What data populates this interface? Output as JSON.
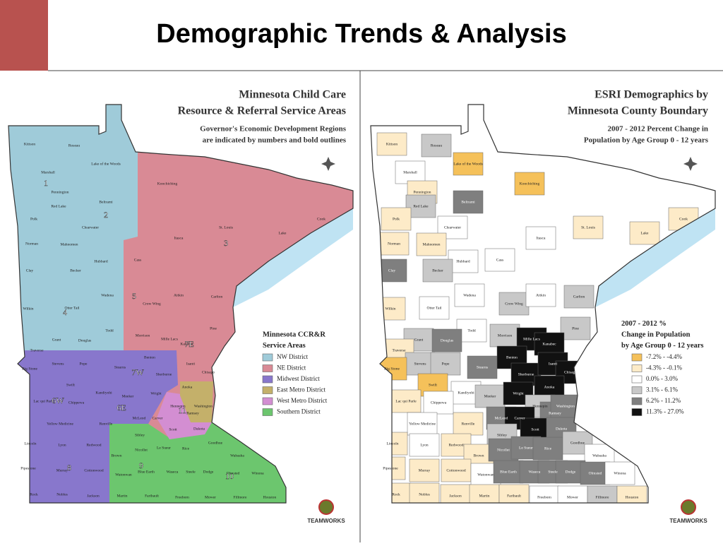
{
  "header": {
    "title": "Demographic Trends & Analysis"
  },
  "counties": [
    {
      "name": "Kittson",
      "class": 1
    },
    {
      "name": "Roseau",
      "class": 3
    },
    {
      "name": "Lake of the Woods",
      "class": 0
    },
    {
      "name": "Marshall",
      "class": 2
    },
    {
      "name": "Pennington",
      "class": 1
    },
    {
      "name": "Red Lake",
      "class": 3
    },
    {
      "name": "Polk",
      "class": 1
    },
    {
      "name": "Beltrami",
      "class": 4
    },
    {
      "name": "Clearwater",
      "class": 2
    },
    {
      "name": "Norman",
      "class": 1
    },
    {
      "name": "Mahnomen",
      "class": 1
    },
    {
      "name": "Hubbard",
      "class": 2
    },
    {
      "name": "Koochiching",
      "class": 0
    },
    {
      "name": "St. Louis",
      "class": 1
    },
    {
      "name": "Lake",
      "class": 1
    },
    {
      "name": "Cook",
      "class": 1
    },
    {
      "name": "Itasca",
      "class": 2
    },
    {
      "name": "Cass",
      "class": 2
    },
    {
      "name": "Clay",
      "class": 4
    },
    {
      "name": "Becker",
      "class": 3
    },
    {
      "name": "Wadena",
      "class": 2
    },
    {
      "name": "Crow Wing",
      "class": 3
    },
    {
      "name": "Aitkin",
      "class": 2
    },
    {
      "name": "Carlton",
      "class": 3
    },
    {
      "name": "Wilkin",
      "class": 1
    },
    {
      "name": "Otter Tail",
      "class": 2
    },
    {
      "name": "Todd",
      "class": 2
    },
    {
      "name": "Morrison",
      "class": 3
    },
    {
      "name": "Mille Lacs",
      "class": 5
    },
    {
      "name": "Pine",
      "class": 3
    },
    {
      "name": "Kanabec",
      "class": 5
    },
    {
      "name": "Grant",
      "class": 3
    },
    {
      "name": "Douglas",
      "class": 4
    },
    {
      "name": "Traverse",
      "class": 1
    },
    {
      "name": "Stevens",
      "class": 3
    },
    {
      "name": "Pope",
      "class": 3
    },
    {
      "name": "Stearns",
      "class": 4
    },
    {
      "name": "Benton",
      "class": 5
    },
    {
      "name": "Sherburne",
      "class": 5
    },
    {
      "name": "Isanti",
      "class": 5
    },
    {
      "name": "Chisago",
      "class": 5
    },
    {
      "name": "Big Stone",
      "class": 0
    },
    {
      "name": "Swift",
      "class": 0
    },
    {
      "name": "Kandiyohi",
      "class": 2
    },
    {
      "name": "Meeker",
      "class": 3
    },
    {
      "name": "Wright",
      "class": 5
    },
    {
      "name": "Anoka",
      "class": 5
    },
    {
      "name": "Lac qui Parle",
      "class": 1
    },
    {
      "name": "Chippewa",
      "class": 2
    },
    {
      "name": "Renville",
      "class": 1
    },
    {
      "name": "McLeod",
      "class": 4
    },
    {
      "name": "Hennepin",
      "class": 3
    },
    {
      "name": "Ramsey",
      "class": 4
    },
    {
      "name": "Washington",
      "class": 4
    },
    {
      "name": "Carver",
      "class": 5
    },
    {
      "name": "Scott",
      "class": 5
    },
    {
      "name": "Dakota",
      "class": 4
    },
    {
      "name": "Yellow Medicine",
      "class": 2
    },
    {
      "name": "Sibley",
      "class": 3
    },
    {
      "name": "Lincoln",
      "class": 1
    },
    {
      "name": "Lyon",
      "class": 2
    },
    {
      "name": "Redwood",
      "class": 1
    },
    {
      "name": "Brown",
      "class": 1
    },
    {
      "name": "Nicollet",
      "class": 4
    },
    {
      "name": "Le Sueur",
      "class": 4
    },
    {
      "name": "Rice",
      "class": 4
    },
    {
      "name": "Goodhue",
      "class": 3
    },
    {
      "name": "Wabasha",
      "class": 2
    },
    {
      "name": "Pipestone",
      "class": 1
    },
    {
      "name": "Murray",
      "class": 1
    },
    {
      "name": "Cottonwood",
      "class": 1
    },
    {
      "name": "Watonwan",
      "class": 2
    },
    {
      "name": "Blue Earth",
      "class": 4
    },
    {
      "name": "Waseca",
      "class": 4
    },
    {
      "name": "Steele",
      "class": 4
    },
    {
      "name": "Dodge",
      "class": 4
    },
    {
      "name": "Olmsted",
      "class": 4
    },
    {
      "name": "Winona",
      "class": 2
    },
    {
      "name": "Rock",
      "class": 1
    },
    {
      "name": "Nobles",
      "class": 1
    },
    {
      "name": "Jackson",
      "class": 1
    },
    {
      "name": "Martin",
      "class": 1
    },
    {
      "name": "Faribault",
      "class": 1
    },
    {
      "name": "Freeborn",
      "class": 2
    },
    {
      "name": "Mower",
      "class": 2
    },
    {
      "name": "Fillmore",
      "class": 3
    },
    {
      "name": "Houston",
      "class": 1
    }
  ],
  "maps": [
    {
      "title_lines": [
        "Minnesota Child Care",
        "Resource & Referral Service Areas"
      ],
      "subtitle_lines": [
        "Governor's Economic Development Regions",
        "are indicated by numbers and bold outlines"
      ],
      "legend": {
        "title_lines": [
          "Minnesota CCR&R",
          "Service Areas"
        ],
        "items": [
          {
            "label": "NW District",
            "color": "#9fcbd9"
          },
          {
            "label": "NE District",
            "color": "#d98a95"
          },
          {
            "label": "Midwest District",
            "color": "#8877cc"
          },
          {
            "label": "East Metro District",
            "color": "#c4b06a"
          },
          {
            "label": "West Metro District",
            "color": "#d38ed2"
          },
          {
            "label": "Southern District",
            "color": "#6cc66e"
          }
        ]
      },
      "region_labels": [
        "1",
        "2",
        "3",
        "4",
        "5",
        "6E",
        "6W",
        "7E",
        "7W",
        "8",
        "9",
        "10",
        "11"
      ],
      "logo": "TEAMWORKS"
    },
    {
      "title_lines": [
        "ESRI Demographics by",
        "Minnesota County Boundary"
      ],
      "subtitle_lines": [
        "2007 - 2012 Percent Change in",
        "Population by Age Group 0 - 12 years"
      ],
      "legend": {
        "title_lines": [
          "2007 - 2012 %",
          "Change in Population",
          "by Age Group 0 - 12 years"
        ],
        "items": [
          {
            "label": "-7.2% - -4.4%",
            "color": "#f5c15a"
          },
          {
            "label": "-4.3% - -0.1%",
            "color": "#fdebc8"
          },
          {
            "label": "0.0% - 3.0%",
            "color": "#ffffff"
          },
          {
            "label": "3.1% - 6.1%",
            "color": "#c8c8c8"
          },
          {
            "label": "6.2% - 11.2%",
            "color": "#7f7f7f"
          },
          {
            "label": "11.3% - 27.0%",
            "color": "#111111"
          }
        ]
      },
      "logo": "TEAMWORKS"
    }
  ]
}
